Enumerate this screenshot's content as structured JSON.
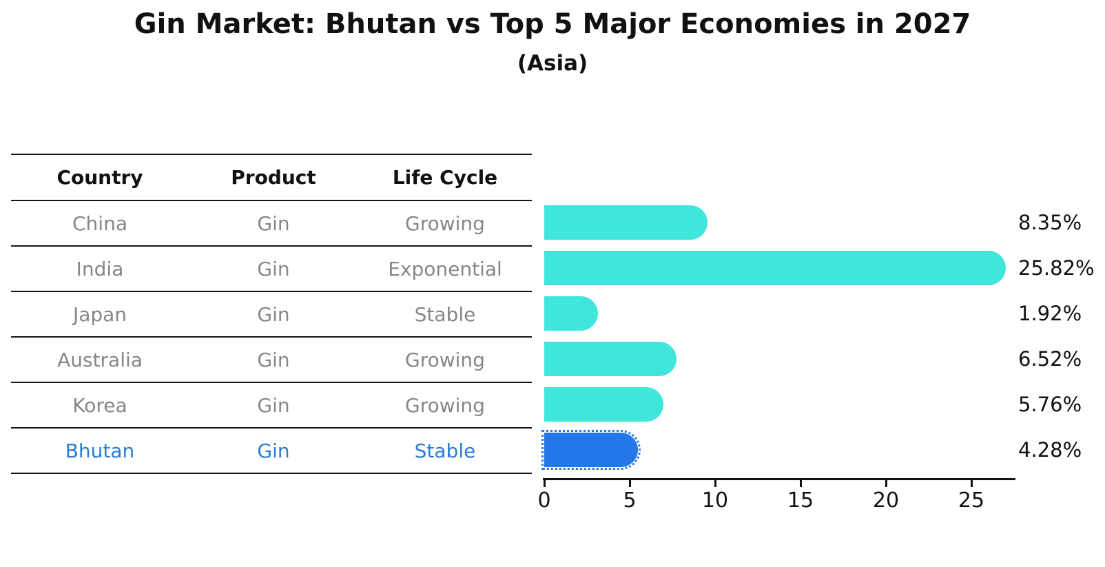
{
  "title": "Gin Market: Bhutan vs Top 5 Major Economies in 2027",
  "subtitle": "(Asia)",
  "table": {
    "headers": [
      "Country",
      "Product",
      "Life Cycle"
    ],
    "rows": [
      {
        "country": "China",
        "product": "Gin",
        "life_cycle": "Growing",
        "highlight": false
      },
      {
        "country": "India",
        "product": "Gin",
        "life_cycle": "Exponential",
        "highlight": false
      },
      {
        "country": "Japan",
        "product": "Gin",
        "life_cycle": "Stable",
        "highlight": false
      },
      {
        "country": "Australia",
        "product": "Gin",
        "life_cycle": "Growing",
        "highlight": false
      },
      {
        "country": "Korea",
        "product": "Gin",
        "life_cycle": "Growing",
        "highlight": false
      },
      {
        "country": "Bhutan",
        "product": "Gin",
        "life_cycle": "Stable",
        "highlight": true
      }
    ]
  },
  "chart_data": {
    "type": "bar",
    "orientation": "horizontal",
    "categories": [
      "China",
      "India",
      "Japan",
      "Australia",
      "Korea",
      "Bhutan"
    ],
    "values": [
      8.35,
      25.82,
      1.92,
      6.52,
      5.76,
      4.28
    ],
    "value_labels": [
      "8.35%",
      "25.82%",
      "1.92%",
      "6.52%",
      "5.76%",
      "4.28%"
    ],
    "x_ticks": [
      0,
      5,
      10,
      15,
      20,
      25
    ],
    "xlim": [
      0,
      27.6
    ],
    "grid": false,
    "legend": "none",
    "bar_color": "#40e6dc",
    "highlight_color": "#2377e8",
    "highlight_index": 5,
    "highlight_style": "dotted-outline"
  },
  "colors": {
    "header_text": "#111111",
    "row_text": "#878787",
    "highlight_text": "#2b7cd6",
    "axis": "#111111"
  }
}
